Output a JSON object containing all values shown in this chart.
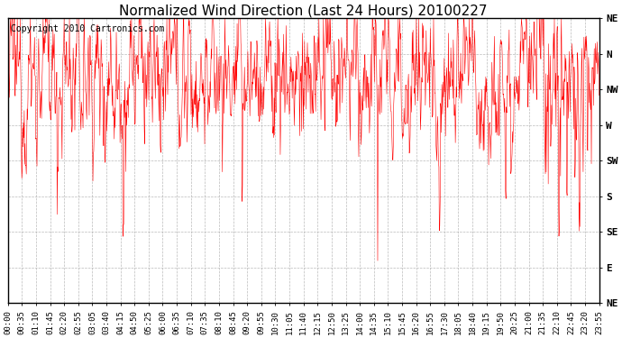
{
  "title": "Normalized Wind Direction (Last 24 Hours) 20100227",
  "copyright_text": "Copyright 2010 Cartronics.com",
  "ytick_labels": [
    "NE",
    "N",
    "NW",
    "W",
    "SW",
    "S",
    "SE",
    "E",
    "NE"
  ],
  "ytick_values": [
    8,
    7,
    6,
    5,
    4,
    3,
    2,
    1,
    0
  ],
  "ylim": [
    0,
    8
  ],
  "xtick_labels": [
    "00:00",
    "00:35",
    "01:10",
    "01:45",
    "02:20",
    "02:55",
    "03:05",
    "03:40",
    "04:15",
    "04:50",
    "05:25",
    "06:00",
    "06:35",
    "07:10",
    "07:35",
    "08:10",
    "08:45",
    "09:20",
    "09:55",
    "10:30",
    "11:05",
    "11:40",
    "12:15",
    "12:50",
    "13:25",
    "14:00",
    "14:35",
    "15:10",
    "15:45",
    "16:20",
    "16:55",
    "17:30",
    "18:05",
    "18:40",
    "19:15",
    "19:50",
    "20:25",
    "21:00",
    "21:35",
    "22:10",
    "22:45",
    "23:20",
    "23:55"
  ],
  "line_color": "#ff0000",
  "bg_color": "#ffffff",
  "grid_color": "#aaaaaa",
  "title_fontsize": 11,
  "copyright_fontsize": 7,
  "axis_fontsize": 6.5,
  "ytick_fontsize": 8,
  "mean_level": 6.35,
  "noise_std": 0.38,
  "n_points": 1440
}
